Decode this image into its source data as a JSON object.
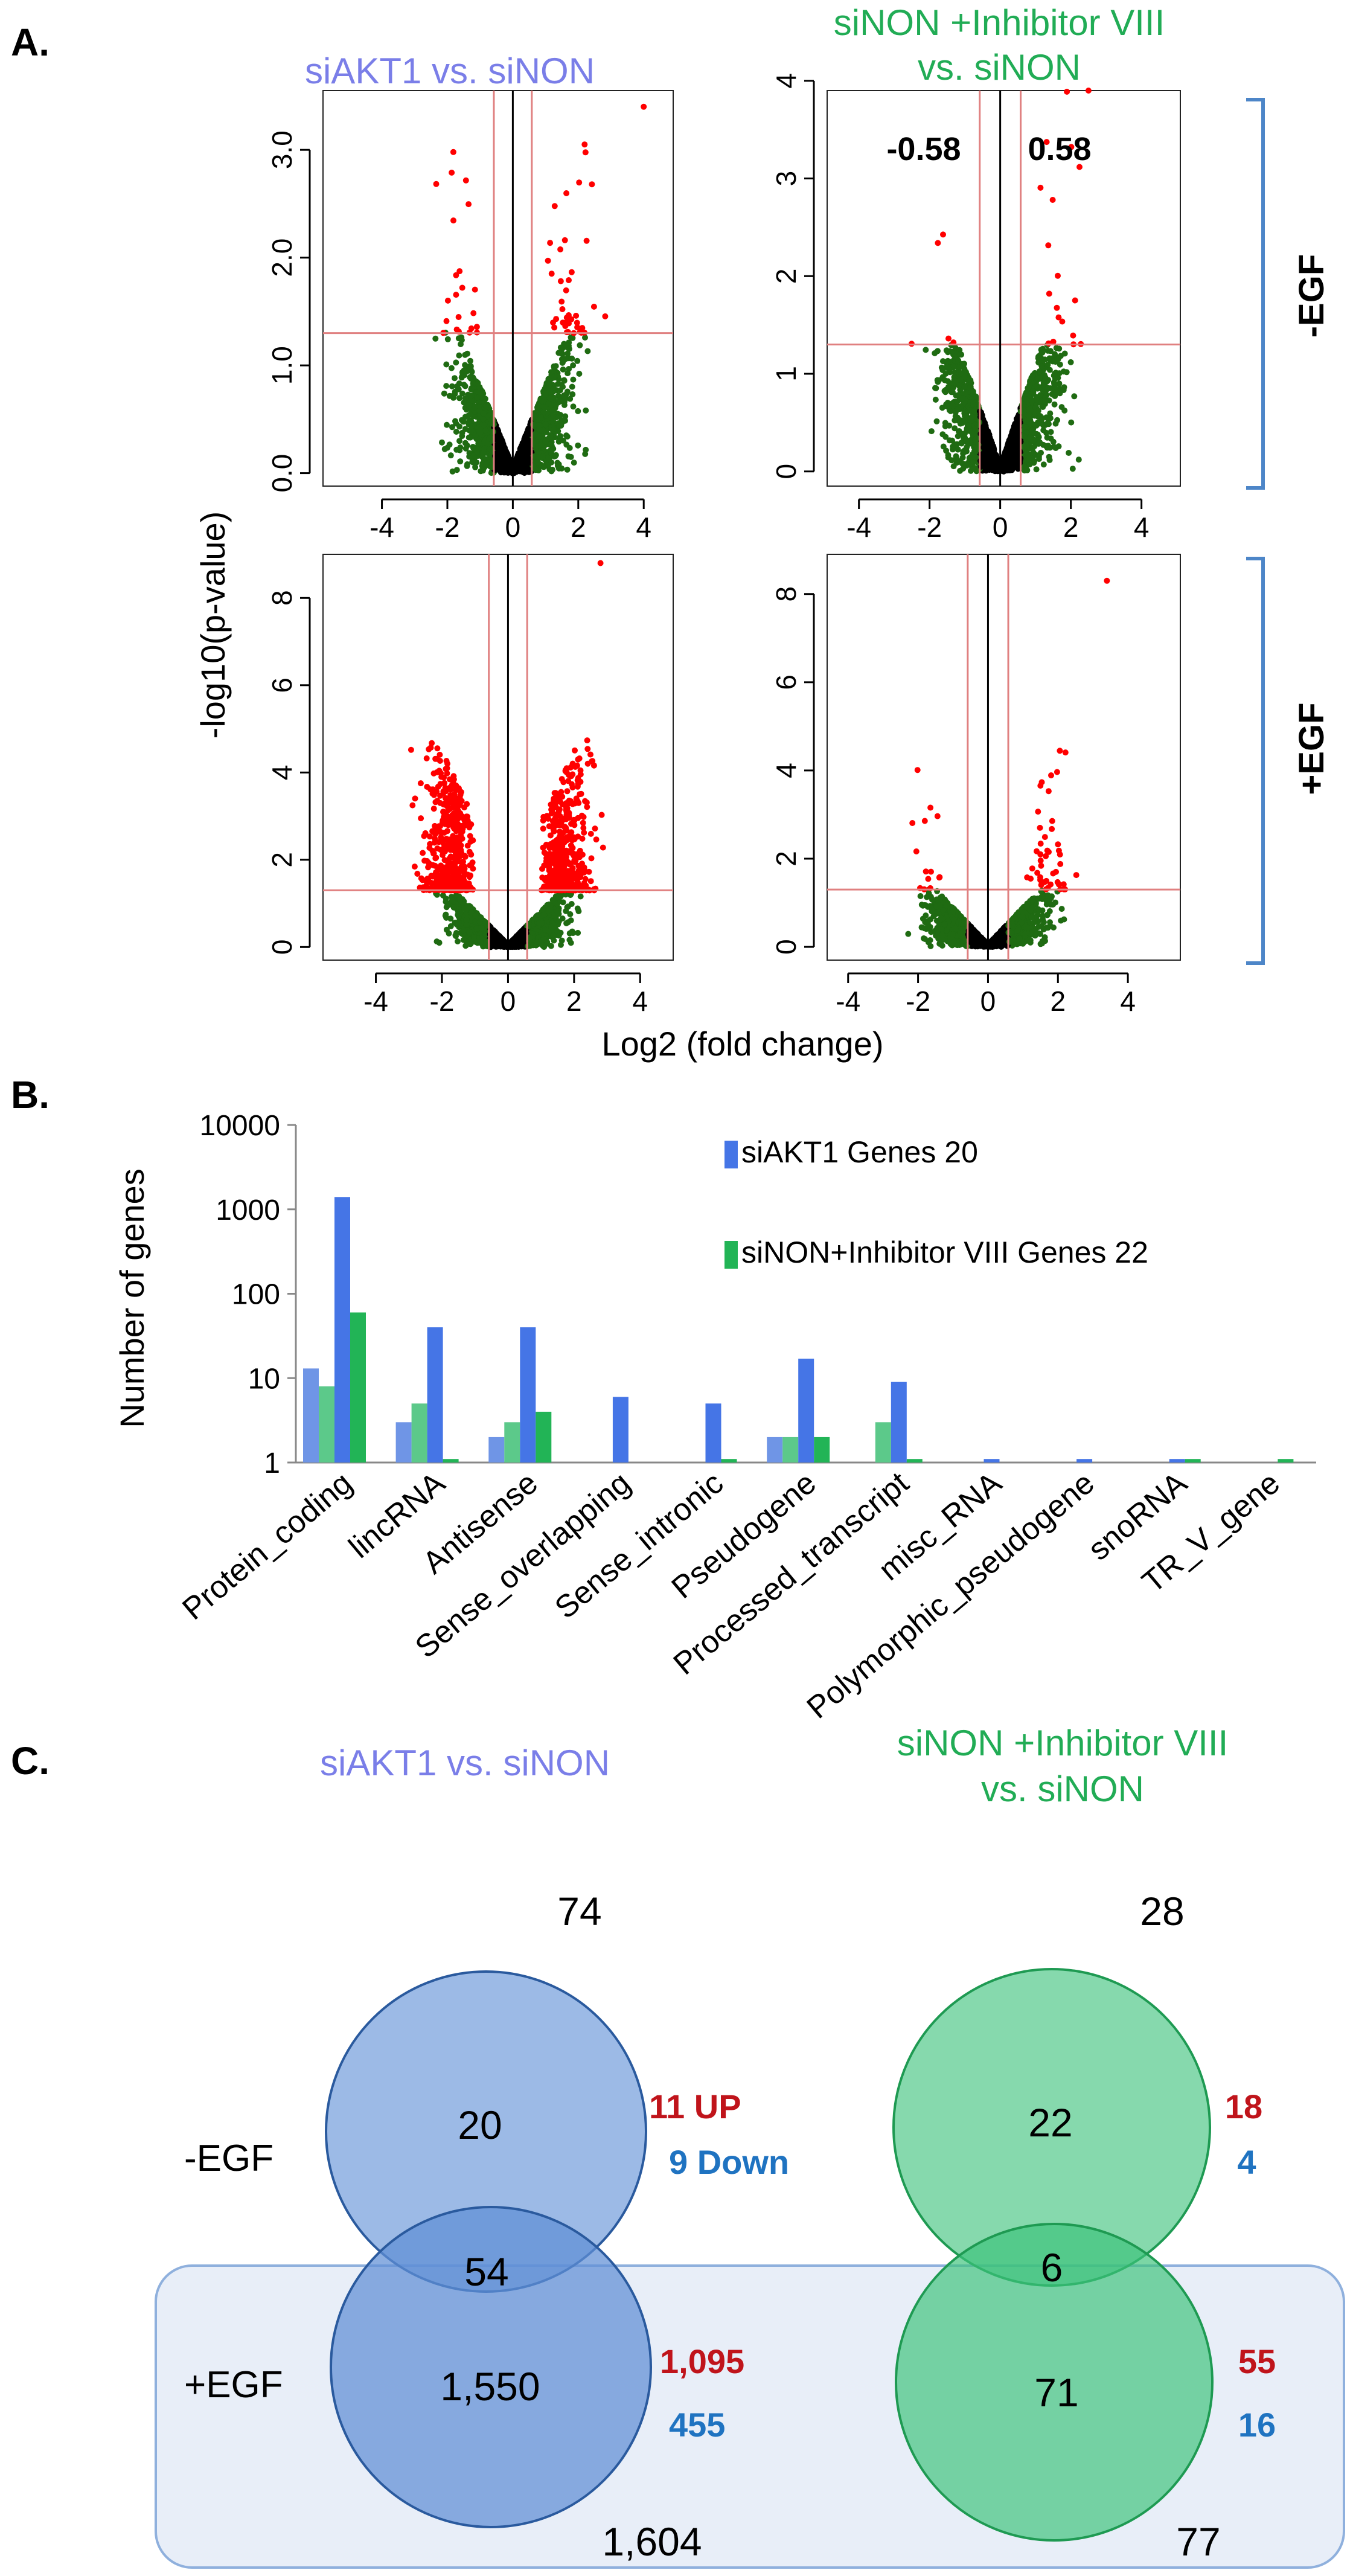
{
  "panel_labels": {
    "a": "A.",
    "b": "B.",
    "c": "C."
  },
  "colors": {
    "points_ns": "#1f6b12",
    "points_sig": "#ff0000",
    "points_core": "#000000",
    "threshold_line": "#e08080",
    "center_line": "#000000",
    "bracket": "#4d86c8",
    "siakt1": "#4575e6",
    "siakt1_light": "#6f95e6",
    "inhibitor": "#22b456",
    "inhibitor_light": "#5cc98a",
    "title_blue": "#7a7ee8",
    "title_green": "#21ac55",
    "up_red": "#c0141b",
    "down_blue": "#1f73c1",
    "venn_blue": "#5f8fd6",
    "venn_green": "#3cc27a",
    "egf_box": "#e8eef8"
  },
  "panel_a": {
    "col_titles": {
      "left": "siAKT1 vs. siNON",
      "right_line1": "siNON +Inhibitor VIII",
      "right_line2": "vs. siNON"
    },
    "row_labels": {
      "top": "-EGF",
      "bottom": "+EGF"
    },
    "ylabel": "-log10(p-value)",
    "xlabel": "Log2 (fold change)",
    "fc_labels": {
      "neg": "-0.58",
      "pos": "0.58"
    }
  },
  "chart_data": [
    {
      "type": "scatter",
      "subtype": "volcano",
      "id": "siAKT1_minusEGF",
      "title": "siAKT1 vs. siNON",
      "condition": "-EGF",
      "xlabel": "Log2 (fold change)",
      "ylabel": "-log10(p-value)",
      "xlim": [
        -5.8,
        4.9
      ],
      "ylim": [
        -0.12,
        3.55
      ],
      "xticks": [
        -4,
        -2,
        0,
        2,
        4
      ],
      "xtick_labels": [
        "-4",
        "-2",
        "0",
        "2",
        "4"
      ],
      "yticks": [
        0,
        1,
        2,
        3
      ],
      "ytick_labels": [
        "0.0",
        "1.0",
        "2.0",
        "3.0"
      ],
      "fc_threshold": 0.58,
      "p_threshold": 1.3,
      "n_points": 2300,
      "spread": 1.6,
      "slope": 0.55,
      "ymax_noise": 1.32,
      "n_sig_pos": 40,
      "n_sig_neg": 22,
      "sig_ymax": 3.4,
      "sig_max_pos": [
        4.0,
        3.4
      ]
    },
    {
      "type": "scatter",
      "subtype": "volcano",
      "id": "inhib_minusEGF",
      "title": "siNON +Inhibitor VIII vs. siNON",
      "condition": "-EGF",
      "xlabel": "Log2 (fold change)",
      "ylabel": "-log10(p-value)",
      "xlim": [
        -4.9,
        5.1
      ],
      "ylim": [
        -0.15,
        3.9
      ],
      "xticks": [
        -4,
        -2,
        0,
        2,
        4
      ],
      "xtick_labels": [
        "-4",
        "-2",
        "0",
        "2",
        "4"
      ],
      "yticks": [
        0,
        1,
        2,
        3,
        4
      ],
      "ytick_labels": [
        "0",
        "1",
        "2",
        "3",
        "4"
      ],
      "fc_threshold": 0.58,
      "p_threshold": 1.3,
      "n_points": 1900,
      "spread": 1.5,
      "slope": 0.75,
      "ymax_noise": 1.3,
      "n_sig_pos": 18,
      "n_sig_neg": 5,
      "sig_ymax": 3.9,
      "sig_max_pos": [
        2.5,
        3.9
      ]
    },
    {
      "type": "scatter",
      "subtype": "volcano",
      "id": "siAKT1_plusEGF",
      "title": "siAKT1 vs. siNON",
      "condition": "+EGF",
      "xlabel": "Log2 (fold change)",
      "ylabel": "-log10(p-value)",
      "xlim": [
        -5.6,
        5.0
      ],
      "ylim": [
        -0.3,
        9.0
      ],
      "xticks": [
        -4,
        -2,
        0,
        2,
        4
      ],
      "xtick_labels": [
        "-4",
        "-2",
        "0",
        "2",
        "4"
      ],
      "yticks": [
        0,
        2,
        4,
        6,
        8
      ],
      "ytick_labels": [
        "0",
        "2",
        "4",
        "6",
        "8"
      ],
      "fc_threshold": 0.58,
      "p_threshold": 1.3,
      "n_points": 2600,
      "spread": 1.5,
      "slope": 0.55,
      "ymax_noise": 1.3,
      "n_sig_pos": 520,
      "n_sig_neg": 560,
      "sig_ymax": 8.8,
      "sig_max_pos": [
        2.8,
        8.8
      ]
    },
    {
      "type": "scatter",
      "subtype": "volcano",
      "id": "inhib_plusEGF",
      "title": "siNON +Inhibitor VIII vs. siNON",
      "condition": "+EGF",
      "xlabel": "Log2 (fold change)",
      "ylabel": "-log10(p-value)",
      "xlim": [
        -4.6,
        5.5
      ],
      "ylim": [
        -0.3,
        8.9
      ],
      "xticks": [
        -4,
        -2,
        0,
        2,
        4
      ],
      "xtick_labels": [
        "-4",
        "-2",
        "0",
        "2",
        "4"
      ],
      "yticks": [
        0,
        2,
        4,
        6,
        8
      ],
      "ytick_labels": [
        "0",
        "2",
        "4",
        "6",
        "8"
      ],
      "fc_threshold": 0.58,
      "p_threshold": 1.3,
      "n_points": 2000,
      "spread": 1.5,
      "slope": 0.6,
      "ymax_noise": 1.3,
      "n_sig_pos": 45,
      "n_sig_neg": 14,
      "sig_ymax": 8.3,
      "sig_max_pos": [
        3.4,
        8.3
      ]
    },
    {
      "type": "bar",
      "id": "gene_biotypes",
      "ylabel": "Number of genes",
      "yscale": "log",
      "ylim": [
        1,
        10000
      ],
      "yticks": [
        1,
        10,
        100,
        1000,
        10000
      ],
      "ytick_labels": [
        "1",
        "10",
        "100",
        "1000",
        "10000"
      ],
      "categories": [
        "Protein_coding",
        "lincRNA",
        "Antisense",
        "Sense_overlapping",
        "Sense_intronic",
        "Pseudogene",
        "Processed_transcript",
        "misc_RNA",
        "Polymorphic_pseudogene",
        "snoRNA",
        "TR_V_gene"
      ],
      "legend": [
        {
          "label": "siAKT1 Genes 20",
          "color": "#4575e6"
        },
        {
          "label": "siNON+Inhibitor VIII  Genes 22",
          "color": "#22b456"
        }
      ],
      "series": [
        {
          "name": "series1",
          "color": "#6f95e6",
          "values": [
            13,
            3,
            2,
            1,
            1,
            2,
            1,
            1,
            1,
            1,
            1
          ]
        },
        {
          "name": "series2",
          "color": "#5cc98a",
          "values": [
            8,
            5,
            3,
            1,
            1,
            2,
            3,
            1,
            1,
            1,
            1
          ]
        },
        {
          "name": "series3",
          "color": "#4575e6",
          "values": [
            1400,
            40,
            40,
            6,
            5,
            17,
            9,
            1.1,
            1.1,
            1.1,
            1
          ]
        },
        {
          "name": "series4",
          "color": "#22b456",
          "values": [
            60,
            1.1,
            4,
            1,
            1.1,
            2,
            1.1,
            1,
            1,
            1.1,
            1.1
          ]
        }
      ]
    }
  ],
  "panel_c": {
    "left_title": "siAKT1 vs. siNON",
    "right_title_line1": "siNON +Inhibitor VIII",
    "right_title_line2": "vs. siNON",
    "row_minus": "-EGF",
    "row_plus": "+EGF",
    "left": {
      "total_minus": "74",
      "only_minus": "20",
      "overlap": "54",
      "only_plus": "1,550",
      "total_plus": "1,604",
      "up_minus": "11 UP",
      "down_minus": "9 Down",
      "up_plus": "1,095",
      "down_plus": "455"
    },
    "right": {
      "total_minus": "28",
      "only_minus": "22",
      "overlap": "6",
      "only_plus": "71",
      "total_plus": "77",
      "up_minus": "18",
      "down_minus": "4",
      "up_plus": "55",
      "down_plus": "16"
    }
  }
}
